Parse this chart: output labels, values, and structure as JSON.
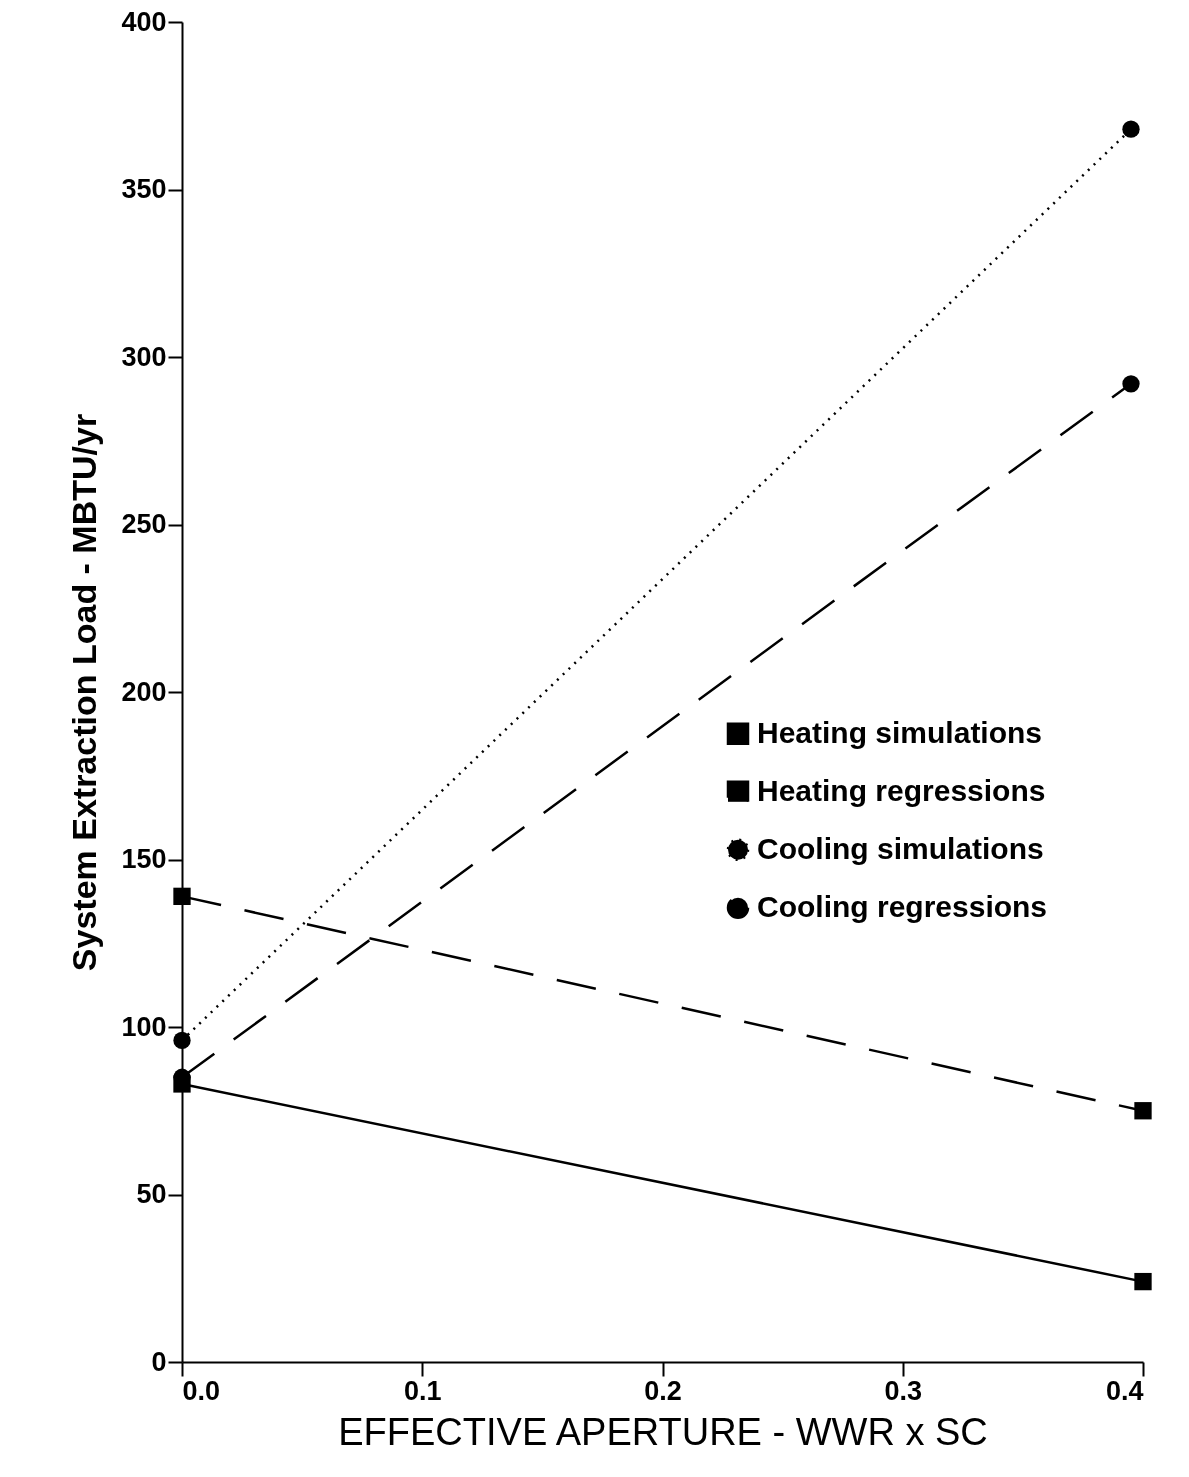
{
  "chart_data": {
    "type": "line",
    "xlabel": "EFFECTIVE APERTURE - WWR x SC",
    "ylabel": "System Extraction Load - MBTU/yr",
    "xlim": [
      0,
      0.4
    ],
    "ylim": [
      0,
      400
    ],
    "xticks": [
      {
        "value": 0,
        "label": "0.0"
      },
      0.1,
      0.2,
      0.3,
      0.4
    ],
    "yticks": [
      0,
      50,
      100,
      150,
      200,
      250,
      300,
      350,
      400
    ],
    "grid": false,
    "legend": "right",
    "series": [
      {
        "name": "Heating simulations",
        "color": "#000000",
        "marker": "square",
        "line_style": "solid",
        "x": [
          0,
          0.4
        ],
        "values": [
          83,
          24
        ]
      },
      {
        "name": "Heating regressions",
        "color": "#000000",
        "marker": "square",
        "line_style": "dashed",
        "x": [
          0,
          0.4
        ],
        "values": [
          139,
          75
        ]
      },
      {
        "name": "Cooling simulations",
        "color": "#000000",
        "marker": "circle",
        "line_style": "dotted",
        "x": [
          0,
          0.395
        ],
        "values": [
          96,
          368
        ]
      },
      {
        "name": "Cooling regressions",
        "color": "#000000",
        "marker": "circle",
        "line_style": "dashed",
        "x": [
          0,
          0.395
        ],
        "values": [
          85,
          292
        ]
      }
    ]
  }
}
